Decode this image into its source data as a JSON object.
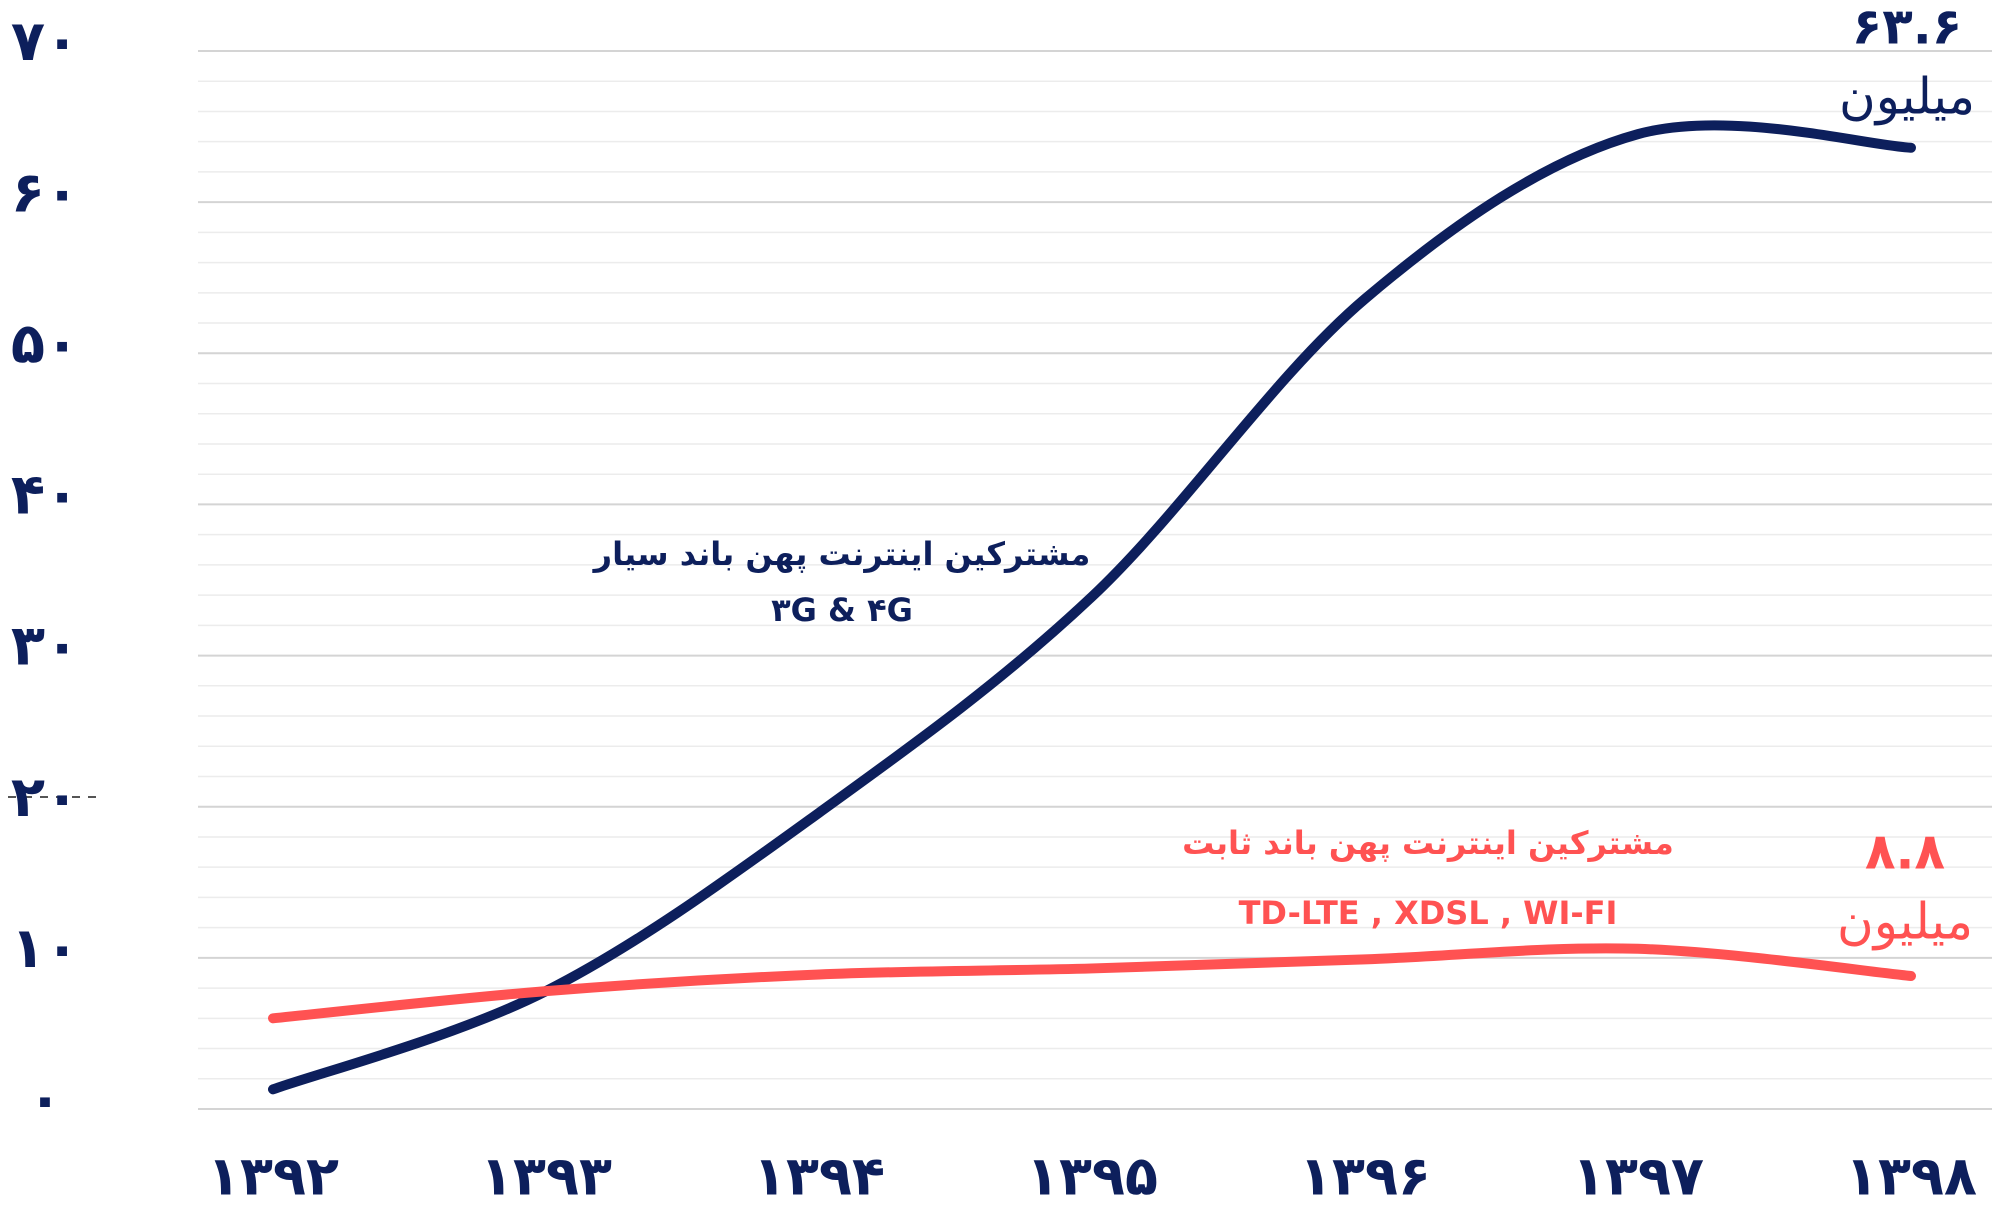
{
  "chart_data": {
    "type": "line",
    "categories": [
      "۱۳۹۲",
      "۱۳۹۳",
      "۱۳۹۴",
      "۱۳۹۵",
      "۱۳۹۶",
      "۱۳۹۷",
      "۱۳۹۸"
    ],
    "series": [
      {
        "name": "مشترکین اینترنت پهن باند سیار",
        "subtitle": "۳G & ۴G",
        "color": "#0d1f5c",
        "values": [
          1.3,
          7.8,
          19.6,
          33.9,
          53.6,
          64.5,
          63.6
        ],
        "value_labels": [
          null,
          null,
          null,
          null,
          null,
          null,
          "۶۳.۶"
        ],
        "unit": "میلیون"
      },
      {
        "name": "مشترکین اینترنت پهن باند ثابت",
        "subtitle": "TD-LTE , XDSL , WI-FI",
        "color": "#ff5252",
        "values": [
          6.0,
          7.8,
          8.9,
          9.3,
          9.9,
          10.6,
          8.8
        ],
        "value_labels": [
          null,
          null,
          null,
          null,
          null,
          null,
          "۸.۸"
        ],
        "unit": "میلیون"
      }
    ],
    "ylim": [
      0,
      70
    ],
    "yticks": [
      {
        "value": 0,
        "label": "۰"
      },
      {
        "value": 10,
        "label": "۱۰"
      },
      {
        "value": 20,
        "label": "۲۰"
      },
      {
        "value": 30,
        "label": "۳۰"
      },
      {
        "value": 40,
        "label": "۴۰"
      },
      {
        "value": 50,
        "label": "۵۰"
      },
      {
        "value": 60,
        "label": "۶۰"
      },
      {
        "value": 70,
        "label": "۷۰"
      }
    ],
    "grid": true,
    "minor_grid": 5,
    "smooth": true
  }
}
